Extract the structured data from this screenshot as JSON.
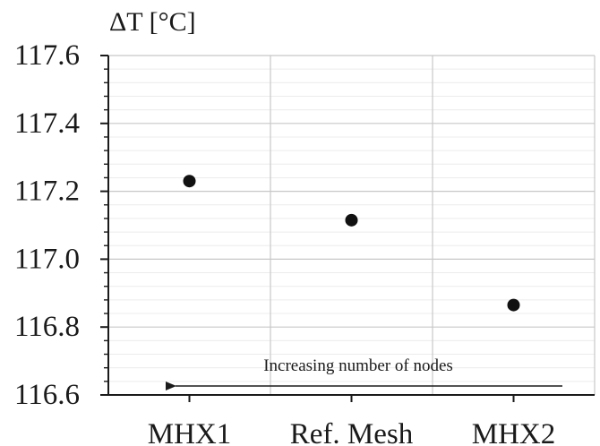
{
  "chart_data": {
    "type": "scatter",
    "title": "",
    "xlabel": "",
    "ylabel": "ΔT [°C]",
    "categories": [
      "MHX1",
      "Ref. Mesh",
      "MHX2"
    ],
    "series": [
      {
        "values": [
          117.23,
          117.115,
          116.865
        ]
      }
    ],
    "ylim": [
      116.6,
      117.6
    ],
    "yticks": [
      "116.6",
      "116.8",
      "117.0",
      "117.2",
      "117.4",
      "117.6"
    ],
    "grid": true,
    "legend": "none",
    "annotation": {
      "text": "Increasing number of nodes",
      "arrow_direction": "left"
    },
    "colors": {
      "marker": "#111111",
      "axis": "#1a1a1a",
      "major_grid": "#c8c8c8",
      "minor_grid": "#ececec"
    }
  }
}
